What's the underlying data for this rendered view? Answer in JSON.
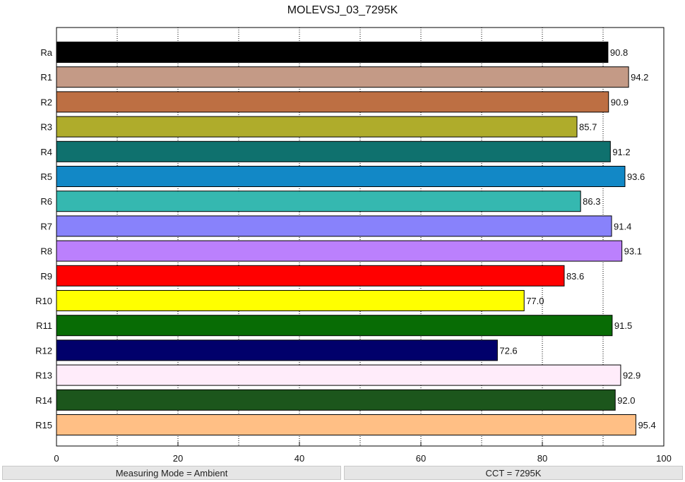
{
  "chart_data": {
    "type": "bar",
    "orientation": "horizontal",
    "title": "MOLEVSJ_03_7295K",
    "xlabel": "",
    "ylabel": "",
    "xlim": [
      0,
      100
    ],
    "x_ticks": [
      "0",
      "20",
      "40",
      "60",
      "80",
      "100"
    ],
    "grid": "vertical dotted every 10",
    "categories": [
      "Ra",
      "R1",
      "R2",
      "R3",
      "R4",
      "R5",
      "R6",
      "R7",
      "R8",
      "R9",
      "R10",
      "R11",
      "R12",
      "R13",
      "R14",
      "R15"
    ],
    "values": [
      90.8,
      94.2,
      90.9,
      85.7,
      91.2,
      93.6,
      86.3,
      91.4,
      93.1,
      83.6,
      77.0,
      91.5,
      72.6,
      92.9,
      92.0,
      95.4
    ],
    "value_labels": [
      "90.8",
      "94.2",
      "90.9",
      "85.7",
      "91.2",
      "93.6",
      "86.3",
      "91.4",
      "93.1",
      "83.6",
      "77.0",
      "91.5",
      "72.6",
      "92.9",
      "92.0",
      "95.4"
    ],
    "colors": [
      "#000000",
      "#c49a86",
      "#bd6f43",
      "#afac2b",
      "#0f716e",
      "#1288c6",
      "#35b8b0",
      "#8882fb",
      "#bb80fd",
      "#ff0000",
      "#ffff00",
      "#086c05",
      "#01006b",
      "#ffecfa",
      "#1c561c",
      "#ffbf85"
    ]
  },
  "status": {
    "measuring_mode": "Measuring Mode = Ambient",
    "cct": "CCT = 7295K"
  }
}
